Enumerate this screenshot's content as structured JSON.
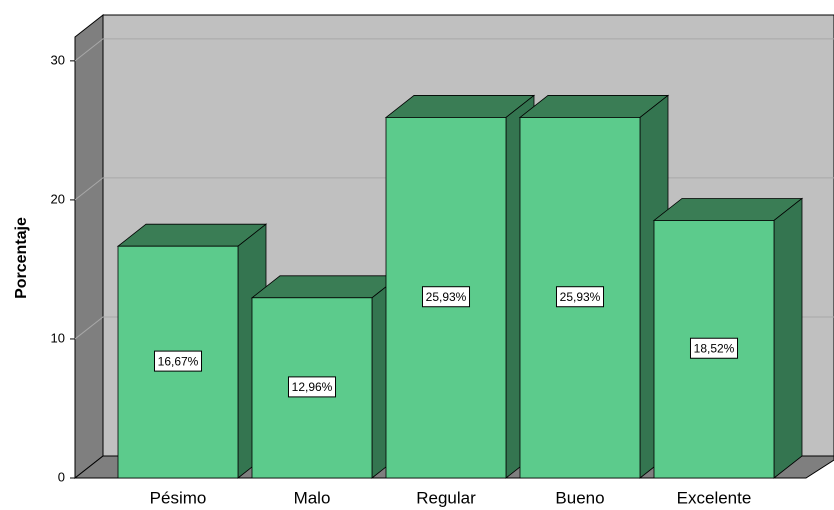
{
  "chart_data": {
    "type": "bar3d",
    "y_label": "Porcentaje",
    "categories": [
      "Pésimo",
      "Malo",
      "Regular",
      "Bueno",
      "Excelente"
    ],
    "values": [
      16.67,
      12.96,
      25.93,
      25.93,
      18.52
    ],
    "value_labels": [
      "16,67%",
      "12,96%",
      "25,93%",
      "25,93%",
      "18,52%"
    ],
    "color": "#5ccb8c",
    "ylim": [
      0,
      31.5
    ],
    "yticks": [
      0,
      10,
      20,
      30
    ],
    "grid": true
  }
}
